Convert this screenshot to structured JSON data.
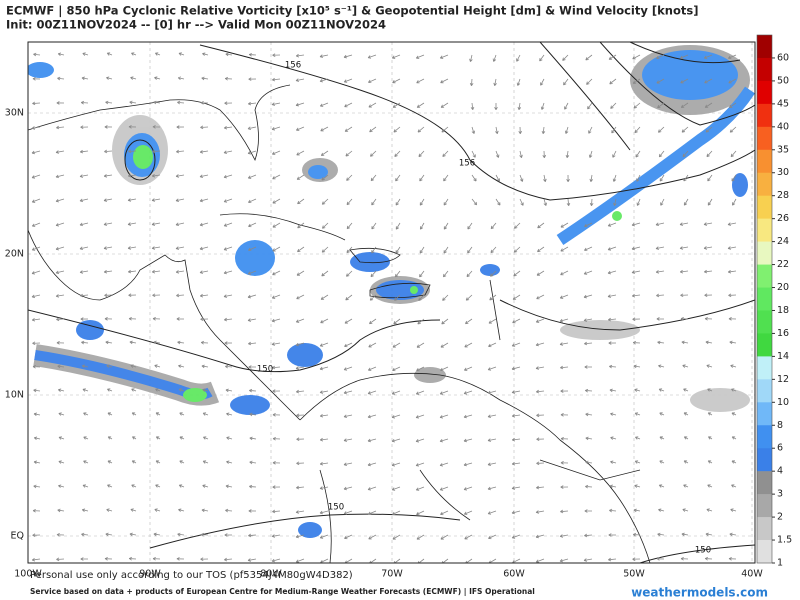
{
  "header": {
    "title": "ECMWF | 850 hPa Cyclonic Relative Vorticity [x10⁵ s⁻¹] & Geopotential Height [dm] & Wind Velocity [knots]",
    "subtitle": "Init: 00Z11NOV2024 -- [0] hr --> Valid Mon 00Z11NOV2024"
  },
  "map": {
    "lat_labels": [
      "30N",
      "20N",
      "10N",
      "EQ"
    ],
    "lon_labels": [
      "100W",
      "90W",
      "80W",
      "70W",
      "60W",
      "50W",
      "40W"
    ],
    "contour_labels": [
      "156",
      "156",
      "150",
      "150",
      "150"
    ]
  },
  "colorbar": {
    "labels": [
      60,
      50,
      45,
      40,
      35,
      30,
      28,
      26,
      24,
      22,
      20,
      18,
      16,
      14,
      12,
      10,
      8,
      6,
      4,
      3,
      2,
      1.5,
      1
    ],
    "colors": [
      "#a00000",
      "#c40000",
      "#e00000",
      "#f03010",
      "#f86020",
      "#f89030",
      "#f8b040",
      "#f8d050",
      "#f8e880",
      "#e8f8c0",
      "#80f070",
      "#60e860",
      "#50e050",
      "#40d840",
      "#c0f0f8",
      "#a0d8f8",
      "#70b8f8",
      "#4090f0",
      "#3a80e8",
      "#909090",
      "#a8a8a8",
      "#c8c8c8",
      "#e0e0e0"
    ]
  },
  "footer": {
    "tos": "Personal use only according to our TOS (pf5354J4M80gW4D382)",
    "service": "Service based on data + products of European Centre for Medium-Range Weather Forecasts (ECMWF) | IFS Operational",
    "brand": "weathermodels.com"
  }
}
